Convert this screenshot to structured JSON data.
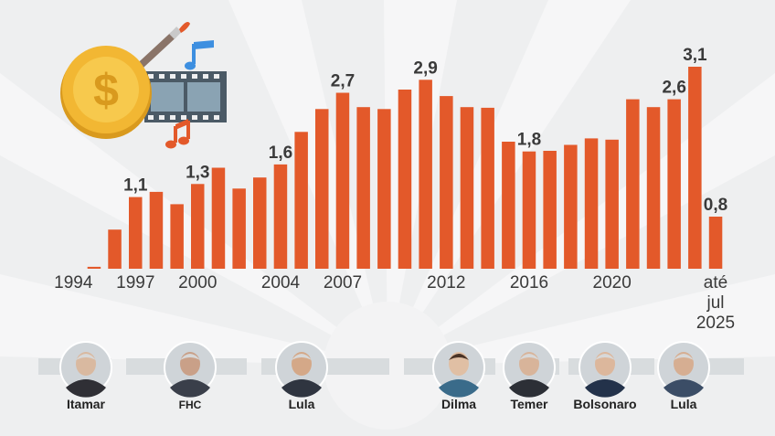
{
  "chart_data": {
    "type": "bar",
    "title": "",
    "xlabel": "",
    "ylabel": "",
    "ylim": [
      0,
      3.4
    ],
    "grid": false,
    "legend": "none",
    "color": "#e3592a",
    "categories": [
      "1994",
      "1995",
      "1996",
      "1997",
      "1998",
      "1999",
      "2000",
      "2001",
      "2002",
      "2003",
      "2004",
      "2005",
      "2006",
      "2007",
      "2008",
      "2009",
      "2010",
      "2011",
      "2012",
      "2013",
      "2014",
      "2015",
      "2016",
      "2017",
      "2018",
      "2019",
      "2020",
      "2021",
      "2022",
      "2023",
      "2024",
      "até jul 2025"
    ],
    "values": [
      0.0,
      0.03,
      0.6,
      1.1,
      1.18,
      0.99,
      1.3,
      1.55,
      1.23,
      1.4,
      1.6,
      2.1,
      2.45,
      2.7,
      2.48,
      2.45,
      2.75,
      2.9,
      2.65,
      2.48,
      2.47,
      1.95,
      1.8,
      1.81,
      1.9,
      2.0,
      1.98,
      2.6,
      2.48,
      2.6,
      3.1,
      0.8
    ],
    "data_labels": [
      {
        "index": 3,
        "text": "1,1"
      },
      {
        "index": 6,
        "text": "1,3"
      },
      {
        "index": 10,
        "text": "1,6"
      },
      {
        "index": 13,
        "text": "2,7"
      },
      {
        "index": 17,
        "text": "2,9"
      },
      {
        "index": 22,
        "text": "1,8"
      },
      {
        "index": 29,
        "text": "2,6"
      },
      {
        "index": 30,
        "text": "3,1"
      },
      {
        "index": 31,
        "text": "0,8"
      }
    ],
    "tick_labels": [
      {
        "index": 0,
        "lines": [
          "1994"
        ]
      },
      {
        "index": 3,
        "lines": [
          "1997"
        ]
      },
      {
        "index": 6,
        "lines": [
          "2000"
        ]
      },
      {
        "index": 10,
        "lines": [
          "2004"
        ]
      },
      {
        "index": 13,
        "lines": [
          "2007"
        ]
      },
      {
        "index": 18,
        "lines": [
          "2012"
        ]
      },
      {
        "index": 22,
        "lines": [
          "2016"
        ]
      },
      {
        "index": 26,
        "lines": [
          "2020"
        ]
      },
      {
        "index": 31,
        "lines": [
          "até",
          "jul",
          "2025"
        ]
      }
    ]
  },
  "presidents": [
    {
      "name": "Itamar",
      "photo_icon": "itamar-portrait-icon"
    },
    {
      "name": "FHC",
      "photo_icon": "fhc-portrait-icon"
    },
    {
      "name": "Lula",
      "photo_icon": "lula-portrait-icon"
    },
    {
      "name": "Dilma",
      "photo_icon": "dilma-portrait-icon"
    },
    {
      "name": "Temer",
      "photo_icon": "temer-portrait-icon"
    },
    {
      "name": "Bolsonaro",
      "photo_icon": "bolsonaro-portrait-icon"
    },
    {
      "name": "Lula",
      "photo_icon": "lula-portrait-icon"
    }
  ],
  "illustration": {
    "icons": [
      "coin-dollar-icon",
      "paintbrush-icon",
      "film-strip-icon",
      "music-note-icon"
    ],
    "colors": {
      "coin": "#f2b733",
      "brush_handle": "#8a7468",
      "film": "#4b5a66",
      "note_blue": "#3d8fe0",
      "note_red": "#e3592a"
    }
  }
}
